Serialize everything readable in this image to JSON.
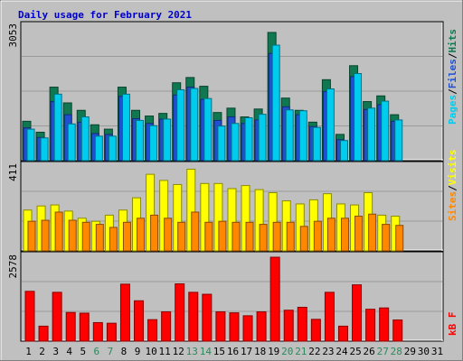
{
  "title": "Daily usage for February 2021",
  "colors": {
    "background": "#c0c0c0",
    "plot_bg": "#c0c0c0",
    "grid": "#9a9a9a",
    "title": "#0000cc",
    "hits": "#107850",
    "files": "#2050d0",
    "pages": "#00ccee",
    "visits": "#ffff00",
    "sites": "#ff8800",
    "kbytes": "#ff0000",
    "weekend_day": "#2a8a5a",
    "weekday": "#000000"
  },
  "chart_data": [
    {
      "type": "bar",
      "panel": "hits-files-pages",
      "ymax_label": "3053",
      "ylim": [
        0,
        3053
      ],
      "legend": [
        "Pages",
        "Files",
        "Hits"
      ],
      "x": [
        "1",
        "2",
        "3",
        "4",
        "5",
        "6",
        "7",
        "8",
        "9",
        "10",
        "11",
        "12",
        "13",
        "14",
        "15",
        "16",
        "17",
        "18",
        "19",
        "20",
        "21",
        "22",
        "23",
        "24",
        "25",
        "26",
        "27",
        "28"
      ],
      "series": [
        {
          "name": "Hits",
          "values": [
            900,
            650,
            1680,
            1320,
            1150,
            820,
            720,
            1680,
            1150,
            1020,
            1080,
            1780,
            1900,
            1700,
            1100,
            1200,
            1000,
            1180,
            2930,
            1430,
            1150,
            880,
            1850,
            600,
            2170,
            1350,
            1480,
            1050
          ]
        },
        {
          "name": "Files",
          "values": [
            750,
            530,
            1350,
            1050,
            880,
            620,
            600,
            1470,
            960,
            850,
            950,
            1500,
            1680,
            1400,
            920,
            1000,
            850,
            930,
            2450,
            1230,
            1050,
            780,
            1580,
            480,
            1920,
            1170,
            1280,
            900
          ]
        },
        {
          "name": "Pages",
          "values": [
            720,
            520,
            1520,
            840,
            1000,
            560,
            560,
            1520,
            920,
            800,
            950,
            1620,
            1650,
            1420,
            790,
            850,
            980,
            1060,
            2640,
            1160,
            1140,
            760,
            1640,
            460,
            1990,
            1200,
            1360,
            930
          ]
        }
      ]
    },
    {
      "type": "bar",
      "panel": "visits-sites",
      "ymax_label": "411",
      "ylim": [
        0,
        411
      ],
      "legend": [
        "Sites",
        "Visits"
      ],
      "x": [
        "1",
        "2",
        "3",
        "4",
        "5",
        "6",
        "7",
        "8",
        "9",
        "10",
        "11",
        "12",
        "13",
        "14",
        "15",
        "16",
        "17",
        "18",
        "19",
        "20",
        "21",
        "22",
        "23",
        "24",
        "25",
        "26",
        "27",
        "28"
      ],
      "series": [
        {
          "name": "Visits",
          "values": [
            200,
            220,
            225,
            195,
            160,
            145,
            175,
            200,
            260,
            375,
            345,
            325,
            400,
            330,
            330,
            305,
            320,
            300,
            285,
            245,
            230,
            250,
            280,
            230,
            225,
            285,
            175,
            170
          ]
        },
        {
          "name": "Sites",
          "values": [
            145,
            150,
            190,
            150,
            140,
            130,
            115,
            140,
            160,
            175,
            160,
            140,
            190,
            140,
            145,
            140,
            140,
            130,
            140,
            140,
            120,
            145,
            160,
            160,
            170,
            180,
            130,
            125
          ]
        }
      ]
    },
    {
      "type": "bar",
      "panel": "kbytes",
      "ymax_label": "2578",
      "ylim": [
        0,
        2578
      ],
      "legend": [
        "kB F"
      ],
      "x": [
        "1",
        "2",
        "3",
        "4",
        "5",
        "6",
        "7",
        "8",
        "9",
        "10",
        "11",
        "12",
        "13",
        "14",
        "15",
        "16",
        "17",
        "18",
        "19",
        "20",
        "21",
        "22",
        "23",
        "24",
        "25",
        "26",
        "27",
        "28"
      ],
      "series": [
        {
          "name": "kB F",
          "values": [
            1530,
            460,
            1500,
            880,
            860,
            570,
            550,
            1750,
            1240,
            660,
            900,
            1760,
            1500,
            1440,
            900,
            870,
            780,
            900,
            2578,
            950,
            1040,
            670,
            1500,
            460,
            1730,
            980,
            1020,
            650
          ]
        }
      ]
    }
  ],
  "days": [
    "1",
    "2",
    "3",
    "4",
    "5",
    "6",
    "7",
    "8",
    "9",
    "10",
    "11",
    "12",
    "13",
    "14",
    "15",
    "16",
    "17",
    "18",
    "19",
    "20",
    "21",
    "22",
    "23",
    "24",
    "25",
    "26",
    "27",
    "28",
    "29",
    "30",
    "31"
  ],
  "weekend_days": [
    "6",
    "7",
    "13",
    "14",
    "20",
    "21",
    "27",
    "28"
  ],
  "legends": {
    "top": [
      {
        "text": "Pages",
        "color": "#00ccee"
      },
      {
        "text": "/",
        "color": "#000000"
      },
      {
        "text": "Files",
        "color": "#2050d0"
      },
      {
        "text": "/",
        "color": "#000000"
      },
      {
        "text": "Hits",
        "color": "#107850"
      }
    ],
    "middle": [
      {
        "text": "Sites",
        "color": "#ff8800"
      },
      {
        "text": "/",
        "color": "#000000"
      },
      {
        "text": "Visits",
        "color": "#ffff00"
      }
    ],
    "bottom": [
      {
        "text": "kB F",
        "color": "#ff0000"
      }
    ]
  }
}
